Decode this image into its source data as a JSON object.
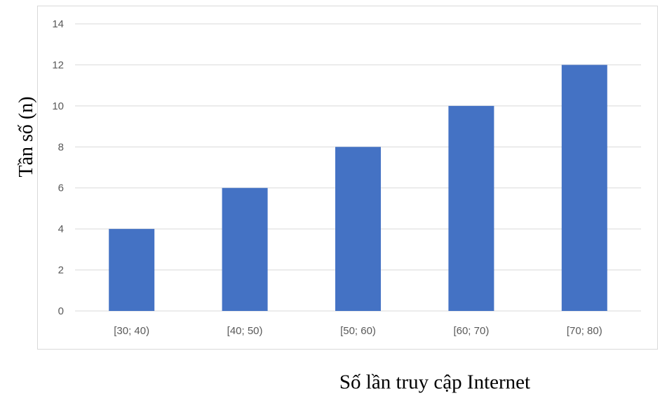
{
  "chart_data": {
    "type": "bar",
    "title": "",
    "xlabel": "Số lần truy cập Internet",
    "ylabel": "Tần số (n)",
    "categories": [
      "[30; 40)",
      "[40; 50)",
      "[50; 60)",
      "[60; 70)",
      "[70; 80)"
    ],
    "values": [
      4,
      6,
      8,
      10,
      12
    ],
    "ylim": [
      0,
      14
    ],
    "yticks": [
      0,
      2,
      4,
      6,
      8,
      10,
      12,
      14
    ],
    "grid": true,
    "legend": "none",
    "colors": {
      "bar": "#4472C4",
      "grid": "#d9d9d9",
      "tick_text": "#595959"
    }
  }
}
